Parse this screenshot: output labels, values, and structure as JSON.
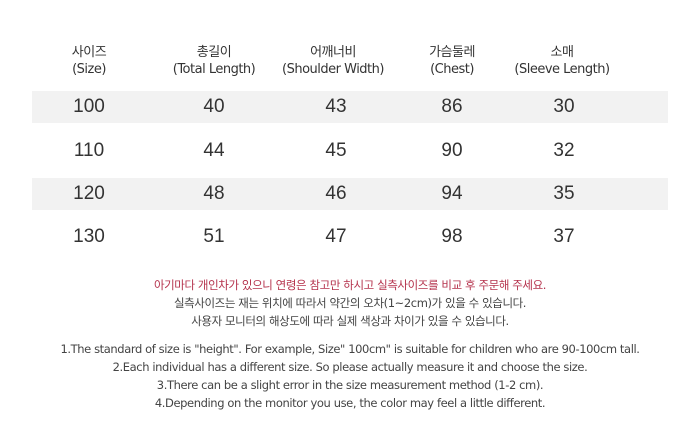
{
  "table": {
    "headers": [
      {
        "ko": "사이즈",
        "en": "(Size)"
      },
      {
        "ko": "총길이",
        "en": "(Total Length)"
      },
      {
        "ko": "어깨너비",
        "en": "(Shoulder Width)"
      },
      {
        "ko": "가슴둘레",
        "en": "(Chest)"
      },
      {
        "ko": "소매",
        "en": "(Sleeve Length)"
      }
    ],
    "rows": [
      [
        "100",
        "40",
        "43",
        "86",
        "30"
      ],
      [
        "110",
        "44",
        "45",
        "90",
        "32"
      ],
      [
        "120",
        "48",
        "46",
        "94",
        "35"
      ],
      [
        "130",
        "51",
        "47",
        "98",
        "37"
      ]
    ]
  },
  "notes_ko": [
    "아기마다 개인차가 있으니 연령은 참고만 하시고 실측사이즈를 비교 후 주문해 주세요.",
    "실측사이즈는 재는 위치에 따라서 약간의  오차(1~2cm)가 있을 수 있습니다.",
    "사용자 모니터의 해상도에 따라 실제 색상과 차이가 있을 수 있습니다."
  ],
  "notes_en": [
    "1.The standard of size is \"height\". For example,  Size\" 100cm\" is suitable for children who are 90-100cm tall.",
    "2.Each individual has a different size. So please actually measure it and choose the size.",
    "3.There can be a slight error in the size measurement method (1-2 cm).",
    "4.Depending on the monitor you use, the color may feel a little different."
  ],
  "colors": {
    "accent_note": "#b5334d",
    "row_shade": "#f2f2f2",
    "text": "#333333"
  }
}
